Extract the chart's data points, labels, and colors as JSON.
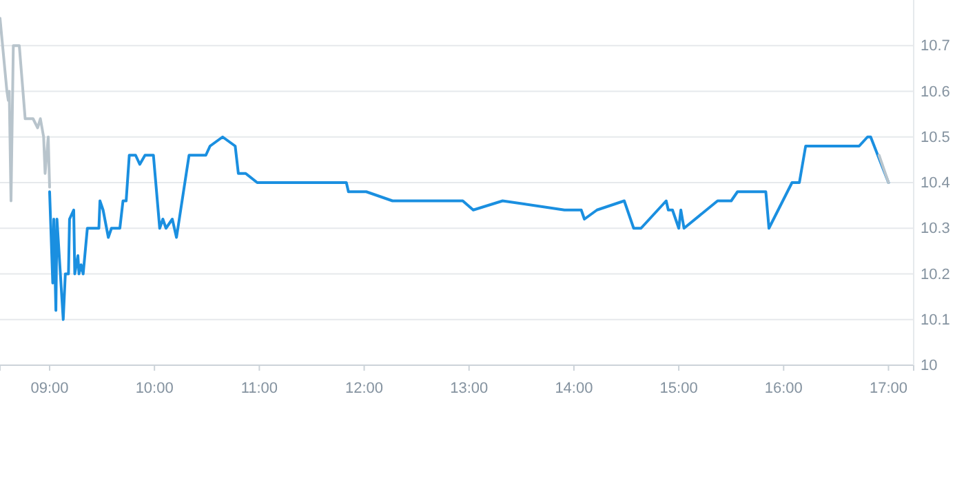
{
  "chart_data": {
    "type": "line",
    "xlim": [
      8.527,
      17.24
    ],
    "xticks": [
      {
        "value": 9,
        "label": "09:00"
      },
      {
        "value": 10,
        "label": "10:00"
      },
      {
        "value": 11,
        "label": "11:00"
      },
      {
        "value": 12,
        "label": "12:00"
      },
      {
        "value": 13,
        "label": "13:00"
      },
      {
        "value": 14,
        "label": "14:00"
      },
      {
        "value": 15,
        "label": "15:00"
      },
      {
        "value": 16,
        "label": "16:00"
      },
      {
        "value": 17,
        "label": "17:00"
      }
    ],
    "ylim": [
      10,
      10.8
    ],
    "yticks": [
      10,
      10.1,
      10.2,
      10.3,
      10.4,
      10.5,
      10.6,
      10.7
    ],
    "grid": "y",
    "marker": "none",
    "series": [
      {
        "color": "#b8c4cc",
        "x": [
          8.527,
          8.593,
          8.606,
          8.615,
          8.632,
          8.654,
          8.711,
          8.767,
          8.842,
          8.886,
          8.912,
          8.943,
          8.957,
          8.987,
          9.0
        ],
        "values": [
          10.76,
          10.6,
          10.58,
          10.6,
          10.36,
          10.7,
          10.7,
          10.54,
          10.54,
          10.52,
          10.54,
          10.5,
          10.42,
          10.5,
          10.39
        ]
      },
      {
        "color": "#1a8fe0",
        "x": [
          9.0,
          9.03,
          9.04,
          9.06,
          9.07,
          9.13,
          9.15,
          9.18,
          9.19,
          9.23,
          9.24,
          9.27,
          9.28,
          9.3,
          9.32,
          9.36,
          9.47,
          9.48,
          9.51,
          9.56,
          9.59,
          9.67,
          9.7,
          9.73,
          9.76,
          9.82,
          9.86,
          9.91,
          9.99,
          10.05,
          10.08,
          10.11,
          10.17,
          10.21,
          10.33,
          10.49,
          10.53,
          10.65,
          10.77,
          10.8,
          10.87,
          10.98,
          11.83,
          11.85,
          12.02,
          12.27,
          12.94,
          13.04,
          13.32,
          13.91,
          14.07,
          14.1,
          14.22,
          14.48,
          14.57,
          14.64,
          14.88,
          14.9,
          14.94,
          15.0,
          15.02,
          15.05,
          15.37,
          15.5,
          15.56,
          15.83,
          15.86,
          16.08,
          16.15,
          16.21,
          16.72,
          16.8,
          16.83,
          17.0
        ],
        "values": [
          10.38,
          10.18,
          10.32,
          10.12,
          10.32,
          10.1,
          10.2,
          10.2,
          10.32,
          10.34,
          10.2,
          10.24,
          10.2,
          10.22,
          10.2,
          10.3,
          10.3,
          10.36,
          10.34,
          10.28,
          10.3,
          10.3,
          10.36,
          10.36,
          10.46,
          10.46,
          10.44,
          10.46,
          10.46,
          10.3,
          10.32,
          10.3,
          10.32,
          10.28,
          10.46,
          10.46,
          10.48,
          10.5,
          10.48,
          10.42,
          10.42,
          10.4,
          10.4,
          10.38,
          10.38,
          10.36,
          10.36,
          10.34,
          10.36,
          10.34,
          10.34,
          10.32,
          10.34,
          10.36,
          10.3,
          10.3,
          10.36,
          10.34,
          10.34,
          10.3,
          10.34,
          10.3,
          10.36,
          10.36,
          10.38,
          10.38,
          10.3,
          10.4,
          10.4,
          10.48,
          10.48,
          10.5,
          10.5,
          10.4
        ]
      },
      {
        "color": "#b8c4cc",
        "x": [
          16.91,
          17.0
        ],
        "values": [
          10.46,
          10.4
        ]
      }
    ]
  }
}
